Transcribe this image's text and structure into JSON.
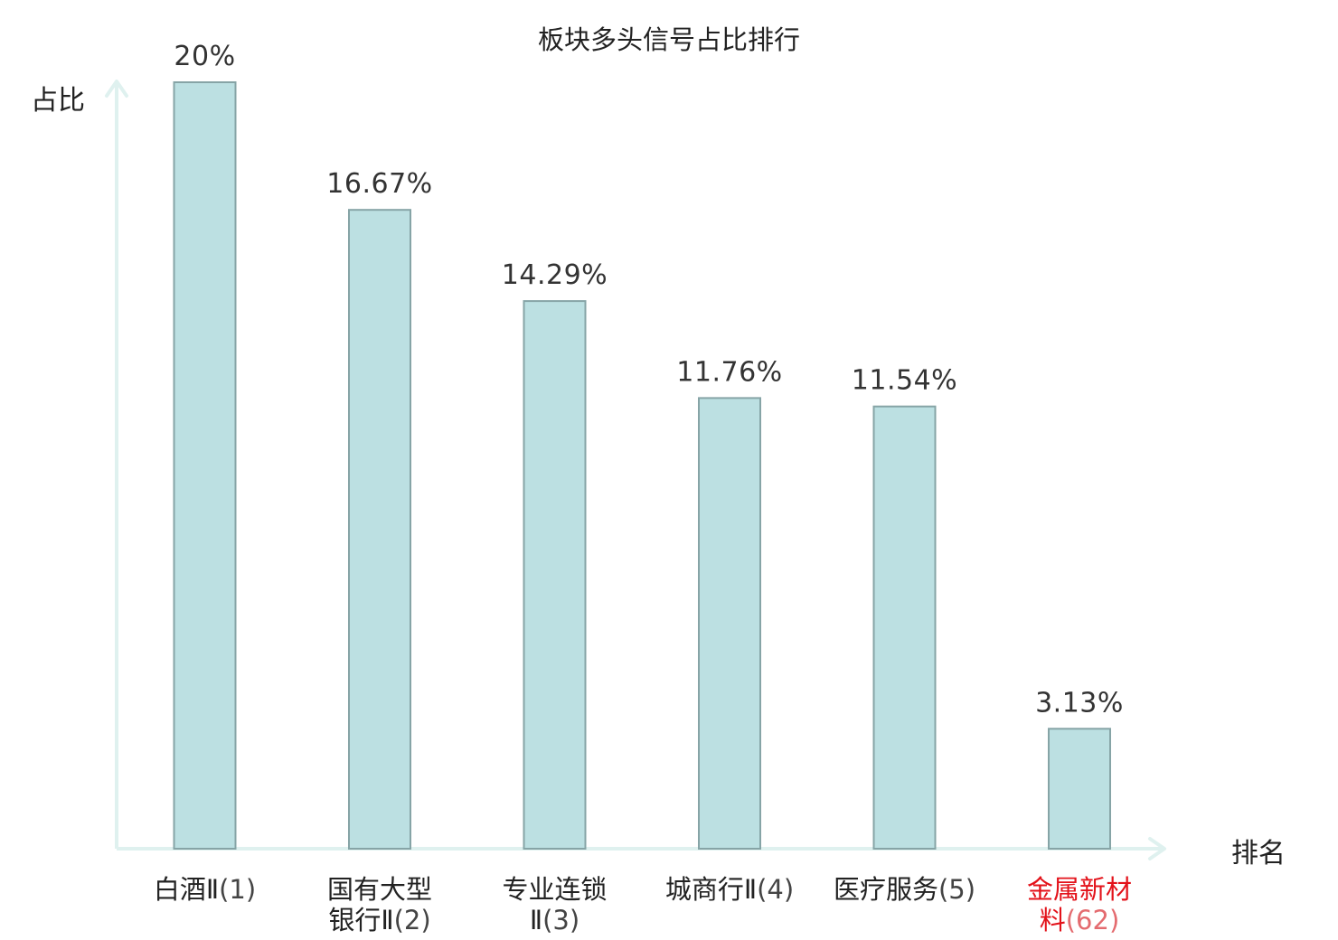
{
  "chart_data": {
    "type": "bar",
    "title": "板块多头信号占比排行",
    "ylabel": "占比",
    "xlabel": "排名",
    "categories": [
      {
        "name_lines": [
          "白酒Ⅱ"
        ],
        "rank": "(1)",
        "highlight": false
      },
      {
        "name_lines": [
          "国有大型",
          "银行Ⅱ"
        ],
        "rank": "(2)",
        "highlight": false
      },
      {
        "name_lines": [
          "专业连锁",
          "Ⅱ"
        ],
        "rank": "(3)",
        "highlight": false
      },
      {
        "name_lines": [
          "城商行Ⅱ"
        ],
        "rank": "(4)",
        "highlight": false
      },
      {
        "name_lines": [
          "医疗服务"
        ],
        "rank": "(5)",
        "highlight": false
      },
      {
        "name_lines": [
          "金属新材",
          "料"
        ],
        "rank": "(62)",
        "highlight": true
      }
    ],
    "values": [
      20,
      16.67,
      14.29,
      11.76,
      11.54,
      3.13
    ],
    "value_labels": [
      "20%",
      "16.67%",
      "14.29%",
      "11.76%",
      "11.54%",
      "3.13%"
    ],
    "ylim": [
      0,
      20
    ],
    "grid": false,
    "colors": {
      "bar_fill": "#bce0e2",
      "bar_stroke": "#86a4a6",
      "axis": "#dff1ef",
      "highlight": "#e3121a"
    }
  }
}
